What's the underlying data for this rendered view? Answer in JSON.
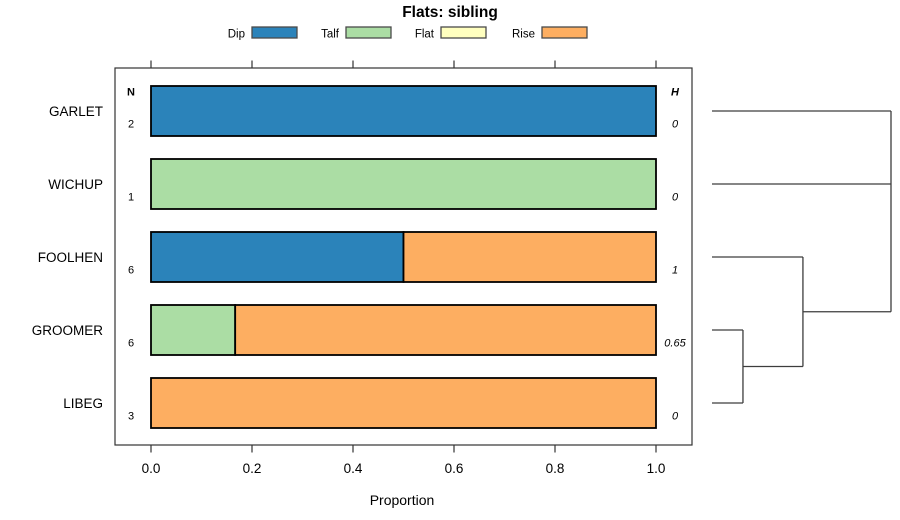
{
  "chart_data": {
    "type": "bar",
    "variant": "horizontal-stacked-proportions-with-dendrogram",
    "title": "Flats: sibling",
    "xlabel": "Proportion",
    "xlim": [
      0.0,
      1.0
    ],
    "x_tick_labels": [
      "0.0",
      "0.2",
      "0.4",
      "0.6",
      "0.8",
      "1.0"
    ],
    "grid": false,
    "legend_position": "top",
    "categories": [
      {
        "label": "Dip",
        "color": "#2B83BA"
      },
      {
        "label": "Talf",
        "color": "#ABDDA4"
      },
      {
        "label": "Flat",
        "color": "#FFFFBF"
      },
      {
        "label": "Rise",
        "color": "#FDAE61"
      }
    ],
    "left_column_header": "N",
    "right_column_header": "H",
    "rows": [
      {
        "label": "GARLET",
        "n": "2",
        "h": "0",
        "segments": [
          {
            "category": "Dip",
            "value": 1
          }
        ]
      },
      {
        "label": "WICHUP",
        "n": "1",
        "h": "0",
        "segments": [
          {
            "category": "Talf",
            "value": 1
          }
        ]
      },
      {
        "label": "FOOLHEN",
        "n": "6",
        "h": "1",
        "segments": [
          {
            "category": "Dip",
            "value": 0.5
          },
          {
            "category": "Rise",
            "value": 0.5
          }
        ]
      },
      {
        "label": "GROOMER",
        "n": "6",
        "h": "0.65",
        "segments": [
          {
            "category": "Talf",
            "value": 0.1667
          },
          {
            "category": "Rise",
            "value": 0.8333
          }
        ]
      },
      {
        "label": "LIBEG",
        "n": "3",
        "h": "0",
        "segments": [
          {
            "category": "Rise",
            "value": 1
          }
        ]
      }
    ],
    "dendrogram": {
      "side": "right",
      "leaf_order": [
        "GARLET",
        "WICHUP",
        "FOOLHEN",
        "GROOMER",
        "LIBEG"
      ],
      "merges": [
        {
          "join": [
            "GROOMER",
            "LIBEG"
          ],
          "height_frac": 0.173
        },
        {
          "join": [
            "FOOLHEN",
            "(GROOMER,LIBEG)"
          ],
          "height_frac": 0.508
        },
        {
          "join": [
            "GARLET",
            "WICHUP",
            "(FOOLHEN,GROOMER,LIBEG)"
          ],
          "height_frac": 1.0
        }
      ],
      "segments": [
        {
          "x1": 0,
          "r1": 0,
          "x2": 1,
          "r2": 0
        },
        {
          "x1": 0,
          "r1": 1,
          "x2": 1,
          "r2": 1
        },
        {
          "x1": 1,
          "r1": 0,
          "x2": 1,
          "r2": 2.75
        },
        {
          "x1": 0.508,
          "r1": 2.75,
          "x2": 1,
          "r2": 2.75
        },
        {
          "x1": 0,
          "r1": 2,
          "x2": 0.508,
          "r2": 2
        },
        {
          "x1": 0.508,
          "r1": 2,
          "x2": 0.508,
          "r2": 3.5
        },
        {
          "x1": 0.173,
          "r1": 3.5,
          "x2": 0.508,
          "r2": 3.5
        },
        {
          "x1": 0,
          "r1": 3,
          "x2": 0.173,
          "r2": 3
        },
        {
          "x1": 0,
          "r1": 4,
          "x2": 0.173,
          "r2": 4
        },
        {
          "x1": 0.173,
          "r1": 3,
          "x2": 0.173,
          "r2": 4
        }
      ]
    },
    "colors": {
      "bar_border": "#000000",
      "axis": "#333333",
      "dendrogram_line": "#3d3d3d",
      "background": "#ffffff",
      "text": "#000000"
    }
  }
}
